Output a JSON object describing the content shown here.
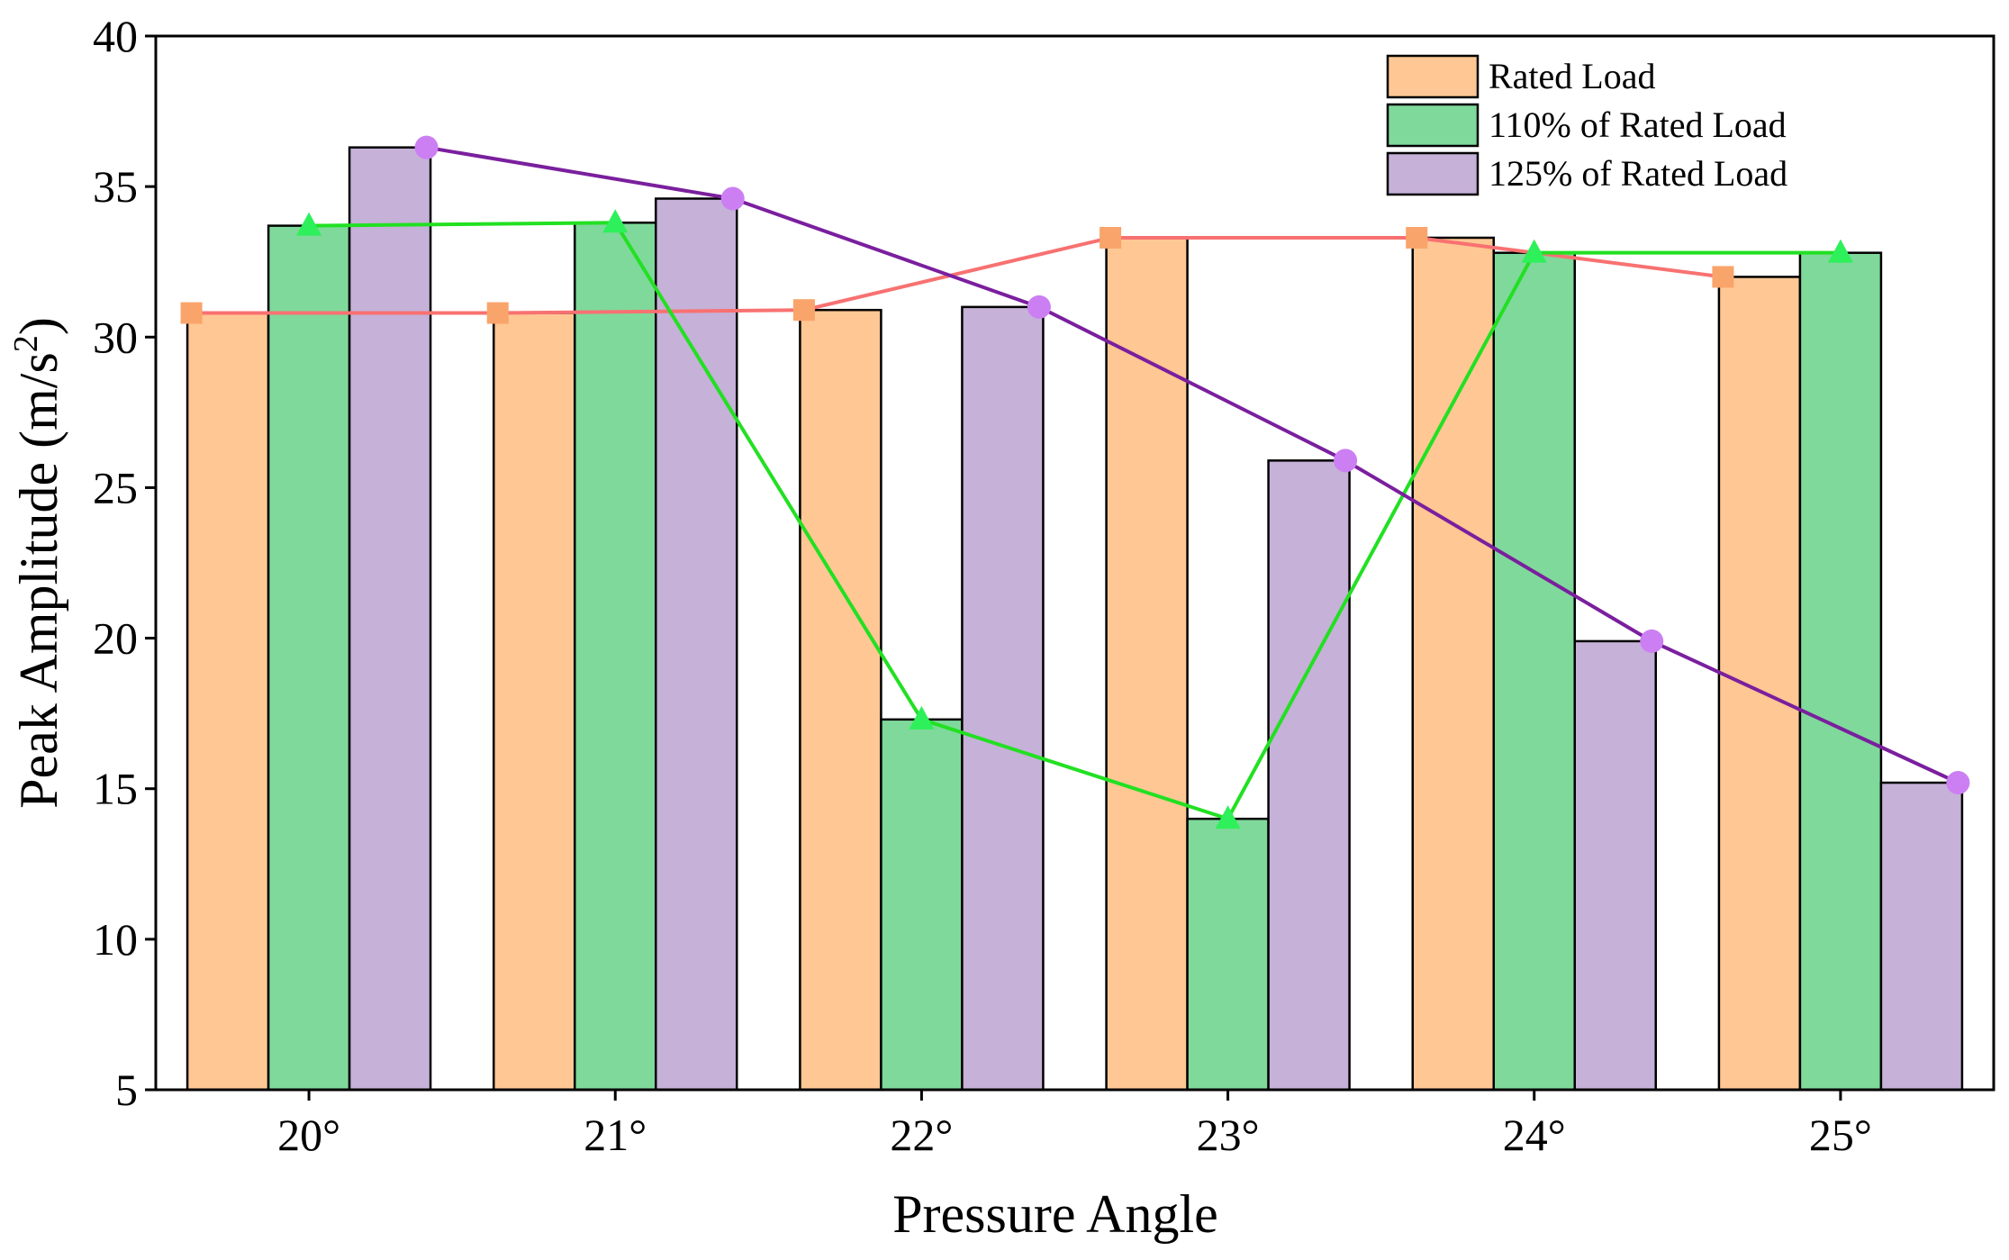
{
  "chart_data": {
    "type": "bar",
    "title": "",
    "xlabel": "Pressure Angle",
    "ylabel_main": "Peak Amplitude (m/s",
    "ylabel_sup": "2",
    "ylabel_close": ")",
    "ylim": [
      5,
      40
    ],
    "yticks": [
      "5",
      "10",
      "15",
      "20",
      "25",
      "30",
      "35",
      "40"
    ],
    "categories": [
      "20°",
      "21°",
      "22°",
      "23°",
      "24°",
      "25°"
    ],
    "legend_position": "top-right",
    "grid": false,
    "series": [
      {
        "name": "Rated Load",
        "values": [
          30.8,
          30.8,
          30.9,
          33.3,
          33.3,
          32.0
        ],
        "bar_color": "#fec793",
        "line_color": "#f87171",
        "marker_color": "#f9a46b",
        "marker": "square"
      },
      {
        "name": "110% of  Rated Load",
        "values": [
          33.7,
          33.8,
          17.3,
          14.0,
          32.8,
          32.8
        ],
        "bar_color": "#7fd99b",
        "line_color": "#22e022",
        "marker_color": "#2ef05a",
        "marker": "triangle"
      },
      {
        "name": "125% of  Rated Load",
        "values": [
          36.3,
          34.6,
          31.0,
          25.9,
          19.9,
          15.2
        ],
        "bar_color": "#c6b1d8",
        "line_color": "#7a1f9e",
        "marker_color": "#cc7ff2",
        "marker": "circle"
      }
    ]
  }
}
